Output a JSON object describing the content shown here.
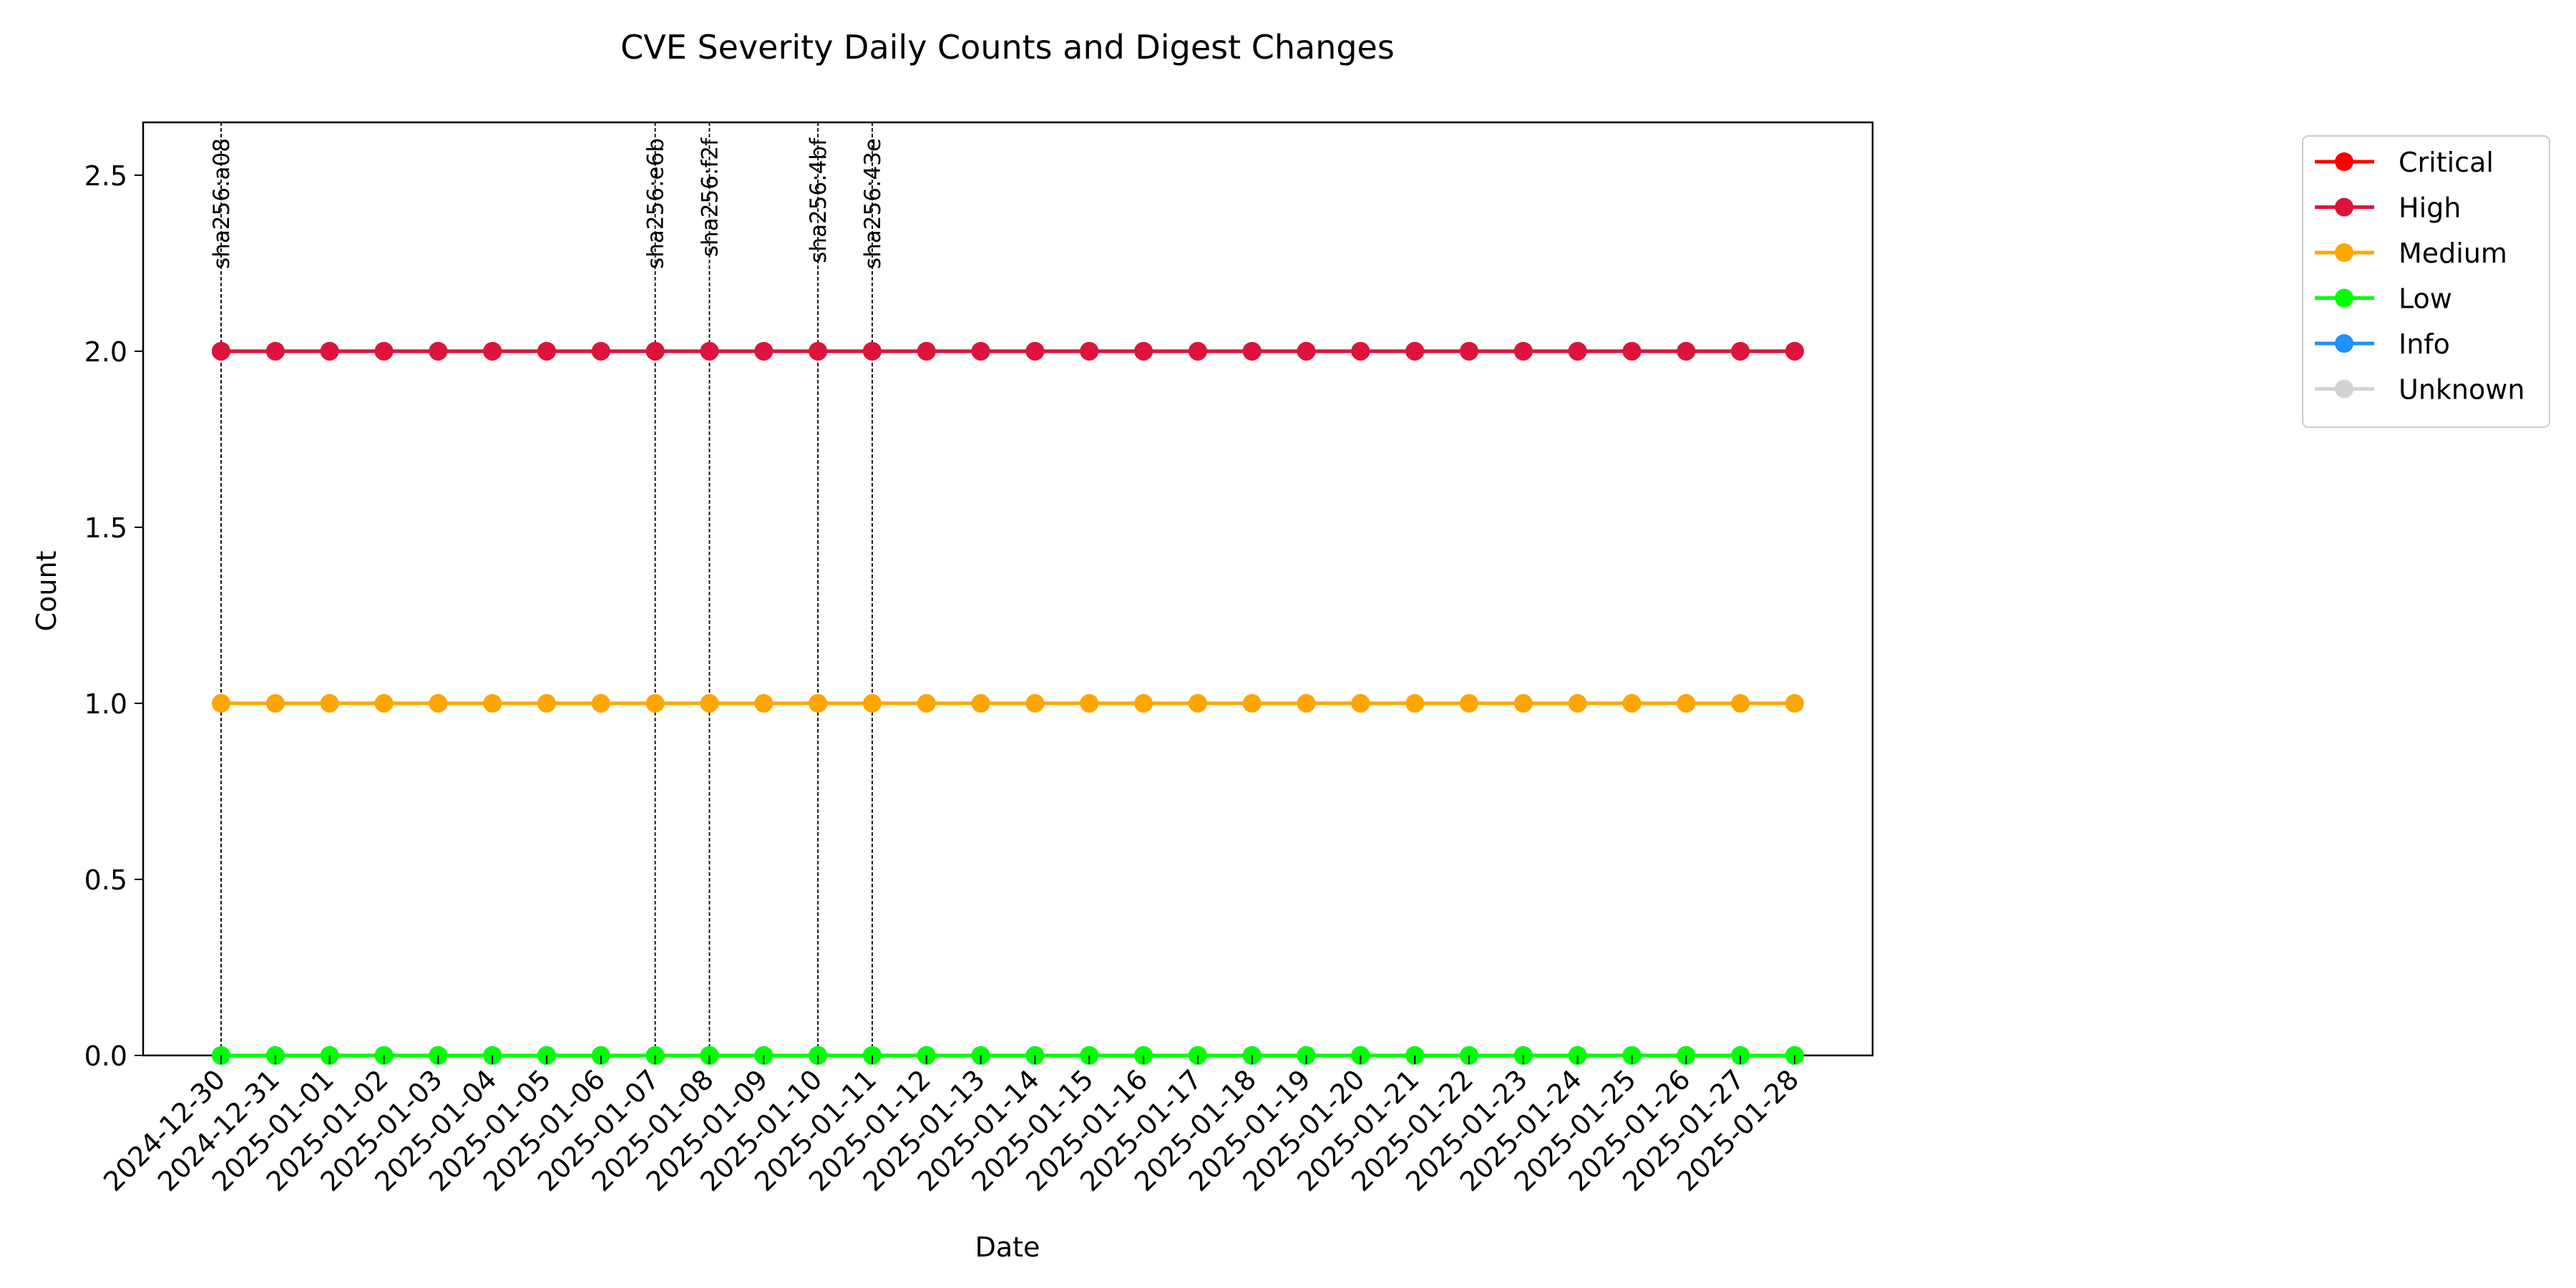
{
  "chart_data": {
    "type": "line",
    "title": "CVE Severity Daily Counts and Digest Changes",
    "xlabel": "Date",
    "ylabel": "Count",
    "ylim": [
      0,
      2.65
    ],
    "yticks": [
      0.0,
      0.5,
      1.0,
      1.5,
      2.0,
      2.5
    ],
    "grid": false,
    "legend_position": "outside-top-right",
    "x": [
      "2024-12-30",
      "2024-12-31",
      "2025-01-01",
      "2025-01-02",
      "2025-01-03",
      "2025-01-04",
      "2025-01-05",
      "2025-01-06",
      "2025-01-07",
      "2025-01-08",
      "2025-01-09",
      "2025-01-10",
      "2025-01-11",
      "2025-01-12",
      "2025-01-13",
      "2025-01-14",
      "2025-01-15",
      "2025-01-16",
      "2025-01-17",
      "2025-01-18",
      "2025-01-19",
      "2025-01-20",
      "2025-01-21",
      "2025-01-22",
      "2025-01-23",
      "2025-01-24",
      "2025-01-25",
      "2025-01-26",
      "2025-01-27",
      "2025-01-28"
    ],
    "series": [
      {
        "name": "Critical",
        "color": "#ff0000",
        "values": [
          2,
          2,
          2,
          2,
          2,
          2,
          2,
          2,
          2,
          2,
          2,
          2,
          2,
          2,
          2,
          2,
          2,
          2,
          2,
          2,
          2,
          2,
          2,
          2,
          2,
          2,
          2,
          2,
          2,
          2
        ]
      },
      {
        "name": "High",
        "color": "#dc143c",
        "values": [
          2,
          2,
          2,
          2,
          2,
          2,
          2,
          2,
          2,
          2,
          2,
          2,
          2,
          2,
          2,
          2,
          2,
          2,
          2,
          2,
          2,
          2,
          2,
          2,
          2,
          2,
          2,
          2,
          2,
          2
        ]
      },
      {
        "name": "Medium",
        "color": "#ffa500",
        "values": [
          1,
          1,
          1,
          1,
          1,
          1,
          1,
          1,
          1,
          1,
          1,
          1,
          1,
          1,
          1,
          1,
          1,
          1,
          1,
          1,
          1,
          1,
          1,
          1,
          1,
          1,
          1,
          1,
          1,
          1
        ]
      },
      {
        "name": "Low",
        "color": "#00ff00",
        "values": [
          0,
          0,
          0,
          0,
          0,
          0,
          0,
          0,
          0,
          0,
          0,
          0,
          0,
          0,
          0,
          0,
          0,
          0,
          0,
          0,
          0,
          0,
          0,
          0,
          0,
          0,
          0,
          0,
          0,
          0
        ]
      },
      {
        "name": "Info",
        "color": "#1e90ff",
        "values": [
          0,
          0,
          0,
          0,
          0,
          0,
          0,
          0,
          0,
          0,
          0,
          0,
          0,
          0,
          0,
          0,
          0,
          0,
          0,
          0,
          0,
          0,
          0,
          0,
          0,
          0,
          0,
          0,
          0,
          0
        ]
      },
      {
        "name": "Unknown",
        "color": "#d3d3d3",
        "values": [
          0,
          0,
          0,
          0,
          0,
          0,
          0,
          0,
          0,
          0,
          0,
          0,
          0,
          0,
          0,
          0,
          0,
          0,
          0,
          0,
          0,
          0,
          0,
          0,
          0,
          0,
          0,
          0,
          0,
          0
        ]
      }
    ],
    "annotations": [
      {
        "x": "2024-12-30",
        "label": "sha256:a08"
      },
      {
        "x": "2025-01-07",
        "label": "sha256:e6b"
      },
      {
        "x": "2025-01-08",
        "label": "sha256:f2f"
      },
      {
        "x": "2025-01-10",
        "label": "sha256:4bf"
      },
      {
        "x": "2025-01-11",
        "label": "sha256:43e"
      }
    ]
  }
}
